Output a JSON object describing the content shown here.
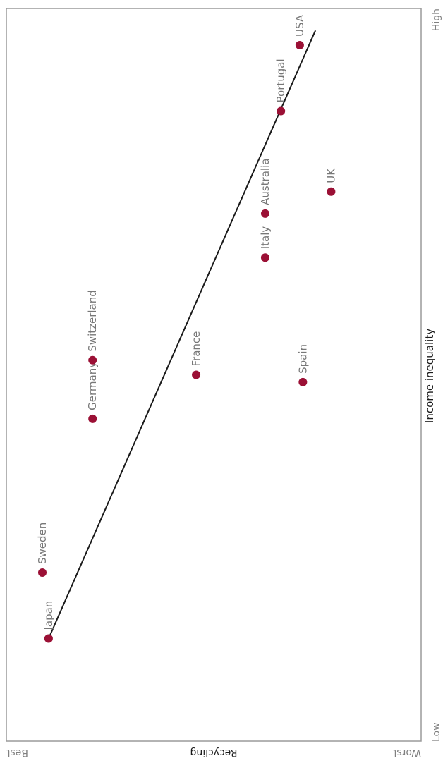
{
  "chart_data": {
    "type": "scatter",
    "title": "",
    "xlabel": "Income inequality",
    "ylabel": "Recycling",
    "x_ticks": {
      "low": "Low",
      "high": "High"
    },
    "y_ticks": {
      "best": "Best",
      "worst": "Worst"
    },
    "xlim": [
      0,
      1
    ],
    "ylim": [
      0,
      1
    ],
    "grid": false,
    "legend": "none",
    "points": [
      {
        "label": "Japan",
        "x": 0.14,
        "y": 0.98
      },
      {
        "label": "Sweden",
        "x": 0.23,
        "y": 1.0
      },
      {
        "label": "Germany",
        "x": 0.44,
        "y": 0.84
      },
      {
        "label": "Switzerland",
        "x": 0.52,
        "y": 0.84
      },
      {
        "label": "France",
        "x": 0.5,
        "y": 0.51
      },
      {
        "label": "Spain",
        "x": 0.49,
        "y": 0.17
      },
      {
        "label": "Italy",
        "x": 0.66,
        "y": 0.29
      },
      {
        "label": "Australia",
        "x": 0.72,
        "y": 0.29
      },
      {
        "label": "UK",
        "x": 0.75,
        "y": 0.08
      },
      {
        "label": "Portugal",
        "x": 0.86,
        "y": 0.24
      },
      {
        "label": "USA",
        "x": 0.95,
        "y": 0.18
      }
    ],
    "trendline": {
      "x": [
        0.14,
        0.97
      ],
      "y": [
        0.98,
        0.13
      ]
    }
  },
  "colors": {
    "point": "#9b1035",
    "trendline": "#1a1a1a",
    "frame": "#9a9a9a",
    "point_label": "#777777",
    "axis_label": "#1a1a1a",
    "tick_label": "#808080"
  }
}
